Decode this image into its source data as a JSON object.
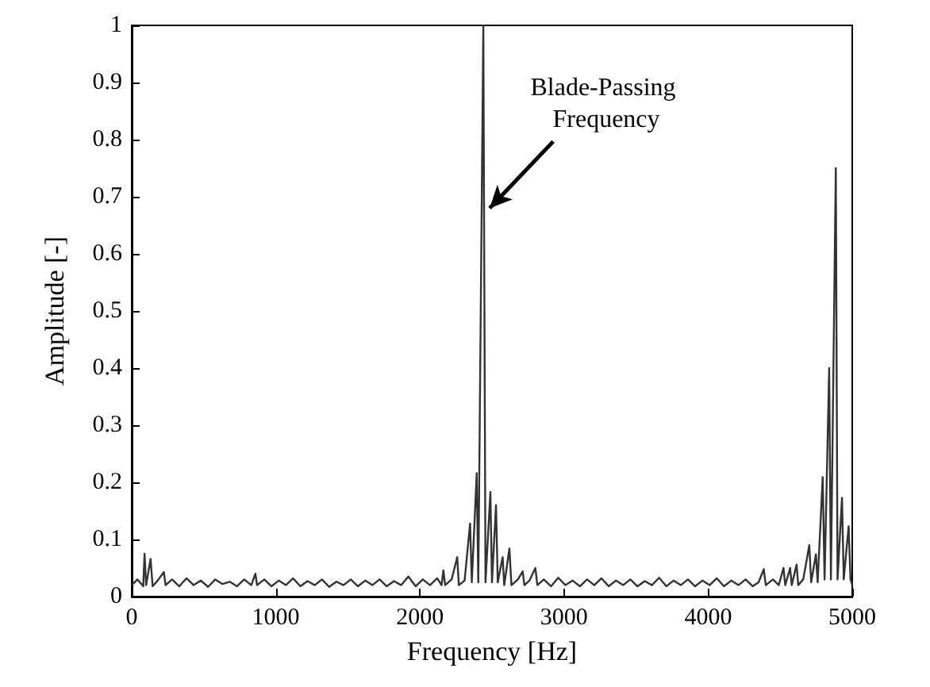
{
  "chart_data": {
    "type": "line",
    "xlabel": "Frequency [Hz]",
    "ylabel": "Amplitude [-]",
    "xlim": [
      0,
      5000
    ],
    "xticks": [
      0,
      1000,
      2000,
      3000,
      4000,
      5000
    ],
    "ylim": [
      0,
      1
    ],
    "yticks": [
      0,
      0.1,
      0.2,
      0.3,
      0.4,
      0.5,
      0.6,
      0.7,
      0.8,
      0.9,
      1
    ],
    "grid": false,
    "marker": "none",
    "line_style": "solid",
    "annotations": [
      {
        "text": "Blade-Passing Frequency",
        "x": 2440,
        "y": 0.68
      }
    ],
    "series": [
      {
        "color": "#333333",
        "x": [
          0,
          40,
          80,
          89,
          100,
          131,
          145,
          180,
          223,
          235,
          280,
          330,
          380,
          430,
          480,
          530,
          580,
          630,
          680,
          730,
          780,
          830,
          858,
          870,
          920,
          970,
          1020,
          1070,
          1120,
          1170,
          1220,
          1270,
          1320,
          1370,
          1420,
          1470,
          1520,
          1570,
          1620,
          1670,
          1720,
          1770,
          1820,
          1870,
          1920,
          1970,
          2020,
          2070,
          2120,
          2150,
          2163,
          2175,
          2220,
          2259,
          2270,
          2310,
          2348,
          2360,
          2394,
          2405,
          2440,
          2455,
          2489,
          2500,
          2528,
          2540,
          2574,
          2585,
          2621,
          2635,
          2680,
          2713,
          2725,
          2760,
          2801,
          2815,
          2860,
          2910,
          2960,
          3010,
          3060,
          3110,
          3160,
          3210,
          3260,
          3310,
          3360,
          3410,
          3460,
          3510,
          3560,
          3610,
          3660,
          3710,
          3760,
          3810,
          3860,
          3910,
          3960,
          4010,
          4060,
          4110,
          4160,
          4210,
          4260,
          4310,
          4350,
          4386,
          4400,
          4450,
          4490,
          4523,
          4535,
          4569,
          4580,
          4614,
          4625,
          4660,
          4702,
          4715,
          4748,
          4760,
          4795,
          4808,
          4840,
          4852,
          4886,
          4898,
          4929,
          4941,
          4975,
          4988,
          5000
        ],
        "values": [
          0.02,
          0.03,
          0.018,
          0.075,
          0.02,
          0.066,
          0.018,
          0.028,
          0.043,
          0.02,
          0.03,
          0.018,
          0.032,
          0.02,
          0.028,
          0.017,
          0.03,
          0.022,
          0.026,
          0.018,
          0.03,
          0.02,
          0.04,
          0.02,
          0.03,
          0.018,
          0.028,
          0.02,
          0.032,
          0.018,
          0.027,
          0.02,
          0.03,
          0.017,
          0.026,
          0.02,
          0.03,
          0.018,
          0.028,
          0.02,
          0.03,
          0.018,
          0.027,
          0.02,
          0.035,
          0.018,
          0.03,
          0.02,
          0.032,
          0.02,
          0.046,
          0.02,
          0.03,
          0.069,
          0.02,
          0.028,
          0.128,
          0.025,
          0.216,
          0.025,
          1.0,
          0.025,
          0.183,
          0.025,
          0.16,
          0.025,
          0.069,
          0.02,
          0.084,
          0.02,
          0.03,
          0.044,
          0.02,
          0.028,
          0.05,
          0.02,
          0.03,
          0.018,
          0.033,
          0.02,
          0.028,
          0.018,
          0.03,
          0.02,
          0.032,
          0.018,
          0.028,
          0.02,
          0.03,
          0.018,
          0.027,
          0.02,
          0.033,
          0.018,
          0.028,
          0.02,
          0.03,
          0.018,
          0.028,
          0.02,
          0.032,
          0.018,
          0.028,
          0.02,
          0.03,
          0.018,
          0.025,
          0.048,
          0.02,
          0.03,
          0.02,
          0.05,
          0.02,
          0.05,
          0.02,
          0.056,
          0.02,
          0.03,
          0.09,
          0.025,
          0.074,
          0.025,
          0.209,
          0.03,
          0.4,
          0.03,
          0.75,
          0.03,
          0.173,
          0.03,
          0.123,
          0.03,
          0.02
        ]
      }
    ]
  }
}
